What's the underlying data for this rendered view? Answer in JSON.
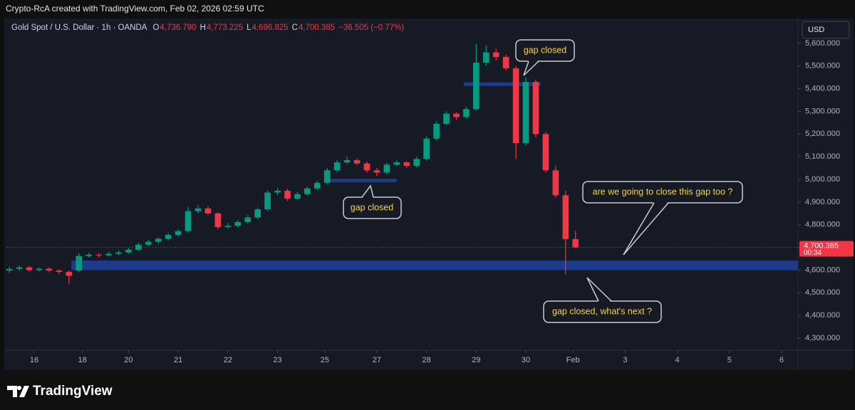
{
  "page": {
    "author_line": "Crypto-RcA created with TradingView.com, Feb 02, 2026 02:59 UTC",
    "symbol": "Gold Spot / U.S. Dollar · 1h · OANDA",
    "ohlc_keys": [
      "O",
      "H",
      "L",
      "C"
    ],
    "ohlc_values": [
      "4,736.790",
      "4,773.225",
      "4,696.825",
      "4,700.385"
    ],
    "change": "−36.505 (−0.77%)",
    "currency": "USD",
    "last_price_label": "4,700.385",
    "countdown": "00:34",
    "brand": "TradingView"
  },
  "chart_data": {
    "type": "candlestick",
    "up_color": "#089981",
    "down_color": "#f23645",
    "level_color": "#1e3a8a",
    "grid": false,
    "xlim": [
      -0.545,
      15.38
    ],
    "ylim": [
      4253,
      5697
    ],
    "xticks": [
      {
        "value": 0,
        "label": "16"
      },
      {
        "value": 0.97,
        "label": "18"
      },
      {
        "value": 1.9,
        "label": "20"
      },
      {
        "value": 2.9,
        "label": "21"
      },
      {
        "value": 3.9,
        "label": "22"
      },
      {
        "value": 4.9,
        "label": "23"
      },
      {
        "value": 5.85,
        "label": "25"
      },
      {
        "value": 6.9,
        "label": "27"
      },
      {
        "value": 7.9,
        "label": "28"
      },
      {
        "value": 8.9,
        "label": "29"
      },
      {
        "value": 9.9,
        "label": "30"
      },
      {
        "value": 10.85,
        "label": "Feb"
      },
      {
        "value": 11.9,
        "label": "3"
      },
      {
        "value": 12.95,
        "label": "4"
      },
      {
        "value": 14,
        "label": "5"
      },
      {
        "value": 15.05,
        "label": "6"
      }
    ],
    "yticks": [
      {
        "value": 5600,
        "label": "5,600.000"
      },
      {
        "value": 5500,
        "label": "5,500.000"
      },
      {
        "value": 5400,
        "label": "5,400.000"
      },
      {
        "value": 5300,
        "label": "5,300.000"
      },
      {
        "value": 5200,
        "label": "5,200.000"
      },
      {
        "value": 5100,
        "label": "5,100.000"
      },
      {
        "value": 5000,
        "label": "5,000.000"
      },
      {
        "value": 4900,
        "label": "4,900.000"
      },
      {
        "value": 4800,
        "label": "4,800.000"
      },
      {
        "value": 4700,
        "label": "4,700.000"
      },
      {
        "value": 4600,
        "label": "4,600.000"
      },
      {
        "value": 4500,
        "label": "4,500.000"
      },
      {
        "value": 4400,
        "label": "4,400.000"
      },
      {
        "value": 4300,
        "label": "4,300.000"
      }
    ],
    "x": [
      -0.5,
      -0.3,
      -0.1,
      0.1,
      0.3,
      0.5,
      0.7,
      0.9,
      1.1,
      1.3,
      1.5,
      1.7,
      1.9,
      2.1,
      2.3,
      2.5,
      2.7,
      2.9,
      3.1,
      3.3,
      3.5,
      3.7,
      3.9,
      4.1,
      4.3,
      4.5,
      4.7,
      4.9,
      5.1,
      5.3,
      5.5,
      5.7,
      5.9,
      6.1,
      6.3,
      6.5,
      6.7,
      6.9,
      7.1,
      7.3,
      7.5,
      7.7,
      7.9,
      8.1,
      8.3,
      8.5,
      8.7,
      8.9,
      9.1,
      9.3,
      9.5,
      9.7,
      9.9,
      10.1,
      10.3,
      10.5,
      10.7,
      10.9
    ],
    "open": [
      4598,
      4605,
      4612,
      4600,
      4606,
      4598,
      4592,
      4598,
      4662,
      4668,
      4665,
      4672,
      4678,
      4690,
      4712,
      4725,
      4738,
      4755,
      4772,
      4860,
      4872,
      4850,
      4790,
      4795,
      4812,
      4832,
      4868,
      4942,
      4950,
      4915,
      4935,
      4960,
      4985,
      5040,
      5075,
      5085,
      5070,
      5040,
      5030,
      5065,
      5075,
      5060,
      5090,
      5180,
      5245,
      5290,
      5275,
      5310,
      5515,
      5560,
      5540,
      5490,
      5160,
      5430,
      5200,
      5040,
      4930,
      4736.79
    ],
    "high": [
      4615,
      4620,
      4618,
      4612,
      4612,
      4604,
      4598,
      4675,
      4676,
      4674,
      4680,
      4686,
      4698,
      4720,
      4734,
      4746,
      4764,
      4780,
      4880,
      4888,
      4882,
      4856,
      4808,
      4820,
      4842,
      4876,
      4952,
      4962,
      4958,
      4944,
      4968,
      4994,
      5050,
      5086,
      5100,
      5092,
      5078,
      5050,
      5074,
      5085,
      5080,
      5100,
      5190,
      5256,
      5300,
      5296,
      5320,
      5598,
      5590,
      5575,
      5550,
      5500,
      5450,
      5440,
      5210,
      5060,
      4950,
      4773.225
    ],
    "low": [
      4588,
      4596,
      4592,
      4594,
      4590,
      4582,
      4540,
      4590,
      4655,
      4656,
      4660,
      4666,
      4672,
      4684,
      4705,
      4718,
      4730,
      4748,
      4765,
      4850,
      4842,
      4780,
      4785,
      4788,
      4805,
      4825,
      4860,
      4930,
      4905,
      4910,
      4928,
      4952,
      4978,
      5032,
      5068,
      5062,
      5030,
      5015,
      5022,
      5058,
      5050,
      5052,
      5082,
      5172,
      5238,
      5262,
      5268,
      5302,
      5500,
      5525,
      5480,
      5090,
      5150,
      5185,
      5030,
      4920,
      4582,
      4696.825
    ],
    "close": [
      4605,
      4612,
      4600,
      4606,
      4598,
      4592,
      4575,
      4662,
      4668,
      4665,
      4672,
      4678,
      4690,
      4712,
      4725,
      4738,
      4755,
      4772,
      4860,
      4872,
      4850,
      4790,
      4795,
      4812,
      4832,
      4868,
      4942,
      4950,
      4915,
      4935,
      4960,
      4985,
      5040,
      5075,
      5085,
      5070,
      5040,
      5030,
      5065,
      5075,
      5060,
      5090,
      5180,
      5245,
      5290,
      5275,
      5310,
      5515,
      5560,
      5540,
      5490,
      5160,
      5430,
      5200,
      5040,
      4930,
      4736.79,
      4700.385
    ],
    "levels": [
      {
        "price": 5420,
        "x": [
          8.65,
          10.2
        ]
      },
      {
        "price": 4995,
        "x": [
          5.85,
          7.3
        ]
      }
    ],
    "zone": {
      "low": 4600,
      "high": 4642,
      "x": [
        0.75,
        15.38
      ]
    },
    "annotations": [
      "gap closed",
      "gap closed",
      "are we going to close this gap too ?",
      "gap closed, what's next ?"
    ]
  }
}
